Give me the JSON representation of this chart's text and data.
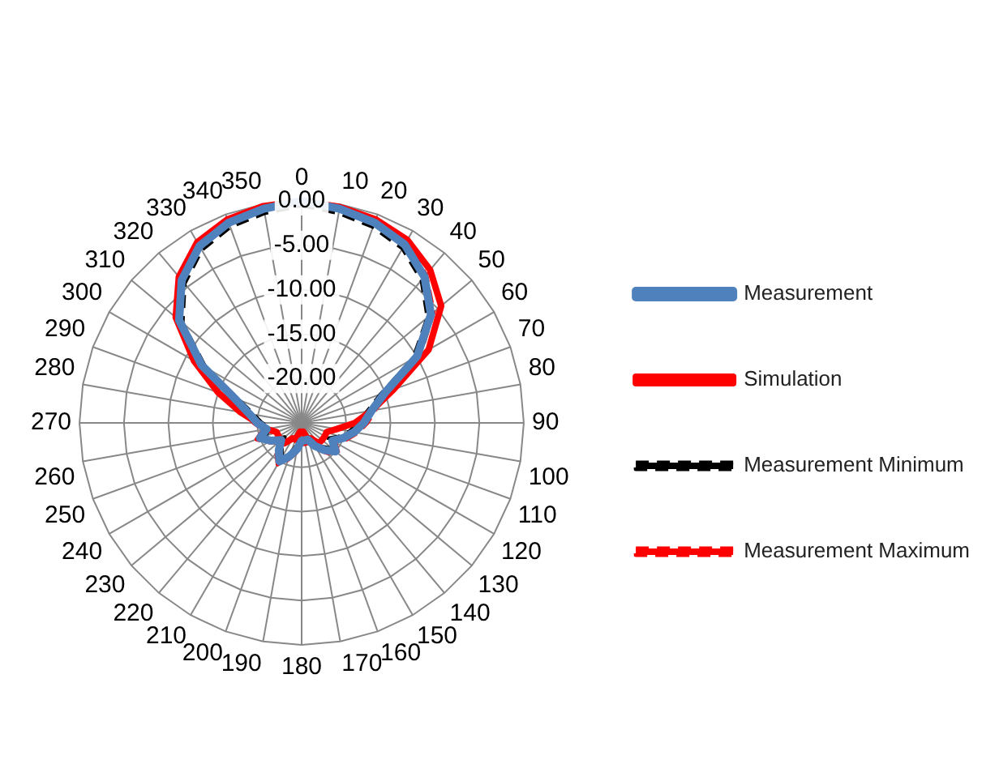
{
  "chart_data": {
    "type": "radar",
    "categories": [
      "0",
      "10",
      "20",
      "30",
      "40",
      "50",
      "60",
      "70",
      "80",
      "90",
      "100",
      "110",
      "120",
      "130",
      "140",
      "150",
      "160",
      "170",
      "180",
      "190",
      "200",
      "210",
      "220",
      "230",
      "240",
      "250",
      "260",
      "270",
      "280",
      "290",
      "300",
      "310",
      "320",
      "330",
      "340",
      "350"
    ],
    "ylim": [
      -25,
      0
    ],
    "yticks": [
      {
        "value": -20,
        "label": "-20.00"
      },
      {
        "value": -15,
        "label": "-15.00"
      },
      {
        "value": -10,
        "label": "-10.00"
      },
      {
        "value": -5,
        "label": "-5.00"
      },
      {
        "value": 0,
        "label": "0.00"
      }
    ],
    "grid": true,
    "legend": "right",
    "marker": "none",
    "series": [
      {
        "name": "Measurement",
        "color": "#4f81bd",
        "values": [
          0,
          -0.5,
          -1,
          -1.8,
          -3.5,
          -6,
          -10,
          -15,
          -17,
          -18,
          -19,
          -20,
          -21,
          -20,
          -21,
          -22,
          -23,
          -23,
          -23,
          -22,
          -21,
          -20,
          -21,
          -22,
          -21,
          -20,
          -21,
          -20,
          -19,
          -17,
          -12,
          -7,
          -4,
          -2,
          -1,
          -0.5
        ]
      },
      {
        "name": "Simulation",
        "color": "#ff0000",
        "values": [
          0,
          -0.3,
          -0.6,
          -1.2,
          -2.5,
          -4.5,
          -8.5,
          -14,
          -17,
          -19,
          -21,
          -22,
          -22,
          -22,
          -22,
          -23,
          -23,
          -24,
          -24,
          -24,
          -23,
          -23,
          -22,
          -22,
          -22,
          -22,
          -21,
          -20,
          -18,
          -15,
          -11,
          -6.5,
          -3.5,
          -1.5,
          -0.6,
          -0.2
        ]
      },
      {
        "name": "Measurement Minimum",
        "color": "#000000",
        "line_style": "dashed",
        "values": [
          -0.5,
          -1,
          -1.5,
          -2.3,
          -4,
          -6.5,
          -10.5,
          -15.5,
          -17.5,
          -18.5,
          -19.5,
          -20.5,
          -21.5,
          -20.5,
          -21.5,
          -22.5,
          -23.5,
          -23.5,
          -23.5,
          -22.5,
          -21.5,
          -20.5,
          -21.5,
          -22.5,
          -21.5,
          -20.5,
          -21.5,
          -20.5,
          -19.5,
          -17.5,
          -12.5,
          -7.5,
          -4.5,
          -2.5,
          -1.5,
          -1
        ]
      },
      {
        "name": "Measurement Maximum",
        "color": "#ff0000",
        "line_style": "dashed",
        "values": [
          0,
          -0.2,
          -0.7,
          -1.5,
          -3.2,
          -5.6,
          -9.6,
          -14.6,
          -16.6,
          -17.6,
          -18.6,
          -19.6,
          -20.6,
          -19.6,
          -20.6,
          -21.6,
          -22.6,
          -22.6,
          -22.6,
          -21.6,
          -20.6,
          -19.6,
          -20.6,
          -21.6,
          -20.6,
          -19.6,
          -20.6,
          -19.6,
          -18.6,
          -16.6,
          -11.6,
          -6.6,
          -3.6,
          -1.6,
          -0.6,
          -0.2
        ]
      }
    ]
  }
}
